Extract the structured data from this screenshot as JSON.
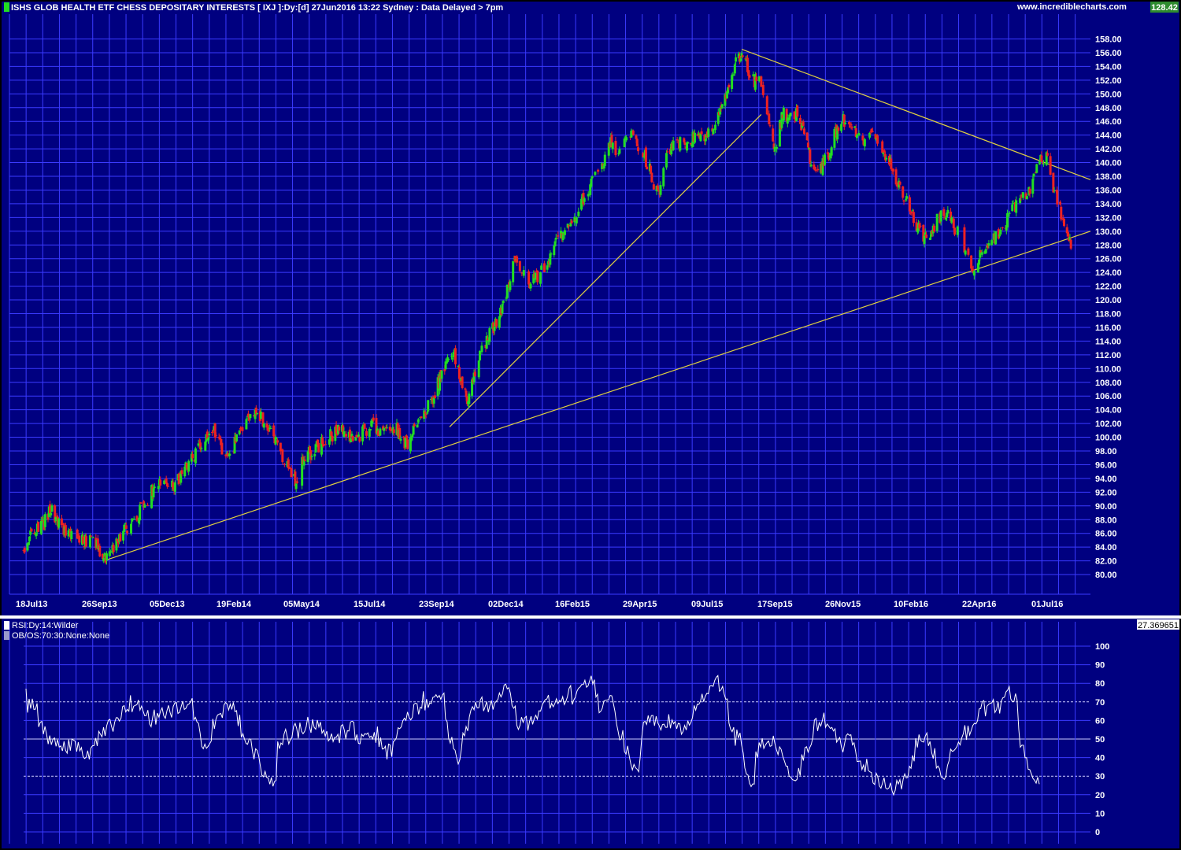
{
  "header": {
    "title": "ISHS GLOB HEALTH ETF CHESS DEPOSITARY INTERESTS [ IXJ ]:Dy:[d]  27Jun2016 13:22 Sydney : Data Delayed > 7pm",
    "site": "www.incrediblecharts.com",
    "last_price": "128.42"
  },
  "indicator": {
    "legend_1": "RSI:Dy:14:Wilder",
    "legend_2": "OB/OS:70:30:None:None",
    "last_value": "27.369651"
  },
  "colors": {
    "background": "#000080",
    "grid": "#3a3aff",
    "up_candle": "#22dd22",
    "down_candle": "#ee2222",
    "trendline": "#e0d040",
    "rsi_line": "#ffffff",
    "price_box": "#2e8b2e"
  },
  "chart_data": [
    {
      "type": "candlestick",
      "series": [
        {
          "name": "IXJ",
          "interpolation": "piecewise-linear close path"
        }
      ],
      "y_ticks": [
        "158.00",
        "156.00",
        "154.00",
        "152.00",
        "150.00",
        "148.00",
        "146.00",
        "144.00",
        "142.00",
        "140.00",
        "138.00",
        "136.00",
        "134.00",
        "132.00",
        "130.00",
        "128.00",
        "126.00",
        "124.00",
        "122.00",
        "120.00",
        "118.00",
        "116.00",
        "114.00",
        "112.00",
        "110.00",
        "108.00",
        "106.00",
        "104.00",
        "102.00",
        "100.00",
        "98.00",
        "96.00",
        "94.00",
        "92.00",
        "90.00",
        "88.00",
        "86.00",
        "84.00",
        "82.00",
        "80.00"
      ],
      "x_ticks": [
        "18Jul13",
        "26Sep13",
        "05Dec13",
        "19Feb14",
        "05May14",
        "15Jul14",
        "23Sep14",
        "02Dec14",
        "16Feb15",
        "29Apr15",
        "09Jul15",
        "17Sep15",
        "26Nov15",
        "10Feb16",
        "22Apr16",
        "01Jul16"
      ],
      "ylim": [
        78,
        159
      ],
      "x_range": [
        "2013-07-18",
        "2016-07-14"
      ],
      "key_points": [
        [
          "2013-07-18",
          83.5
        ],
        [
          "2013-07-25",
          85.5
        ],
        [
          "2013-08-08",
          87.5
        ],
        [
          "2013-08-15",
          89.5
        ],
        [
          "2013-08-25",
          86.5
        ],
        [
          "2013-09-05",
          85.5
        ],
        [
          "2013-09-20",
          85.0
        ],
        [
          "2013-09-26",
          85.2
        ],
        [
          "2013-10-08",
          82.5
        ],
        [
          "2013-10-20",
          84.5
        ],
        [
          "2013-11-03",
          87.5
        ],
        [
          "2013-11-15",
          89.5
        ],
        [
          "2013-11-28",
          92.5
        ],
        [
          "2013-12-08",
          93.5
        ],
        [
          "2013-12-20",
          93.0
        ],
        [
          "2014-01-03",
          96.0
        ],
        [
          "2014-01-20",
          99.5
        ],
        [
          "2014-02-01",
          101.0
        ],
        [
          "2014-02-08",
          96.5
        ],
        [
          "2014-02-19",
          99.0
        ],
        [
          "2014-02-28",
          102.0
        ],
        [
          "2014-03-12",
          104.0
        ],
        [
          "2014-03-25",
          101.5
        ],
        [
          "2014-04-05",
          98.5
        ],
        [
          "2014-04-16",
          95.0
        ],
        [
          "2014-04-22",
          93.5
        ],
        [
          "2014-04-30",
          97.0
        ],
        [
          "2014-05-10",
          98.0
        ],
        [
          "2014-05-25",
          100.0
        ],
        [
          "2014-06-08",
          101.0
        ],
        [
          "2014-06-22",
          100.0
        ],
        [
          "2014-07-08",
          101.5
        ],
        [
          "2014-07-22",
          101.0
        ],
        [
          "2014-08-05",
          101.0
        ],
        [
          "2014-08-14",
          99.0
        ],
        [
          "2014-08-25",
          102.5
        ],
        [
          "2014-09-08",
          105.0
        ],
        [
          "2014-09-23",
          111.0
        ],
        [
          "2014-10-02",
          112.0
        ],
        [
          "2014-10-12",
          107.0
        ],
        [
          "2014-10-16",
          105.0
        ],
        [
          "2014-10-26",
          111.0
        ],
        [
          "2014-11-06",
          115.0
        ],
        [
          "2014-11-14",
          117.0
        ],
        [
          "2014-11-22",
          120.0
        ],
        [
          "2014-12-02",
          125.5
        ],
        [
          "2014-12-12",
          123.5
        ],
        [
          "2014-12-20",
          122.5
        ],
        [
          "2015-01-01",
          124.5
        ],
        [
          "2015-01-10",
          127.0
        ],
        [
          "2015-01-20",
          130.0
        ],
        [
          "2015-02-01",
          132.0
        ],
        [
          "2015-02-16",
          136.0
        ],
        [
          "2015-03-01",
          139.0
        ],
        [
          "2015-03-12",
          143.0
        ],
        [
          "2015-03-18",
          141.0
        ],
        [
          "2015-03-26",
          144.0
        ],
        [
          "2015-04-03",
          143.5
        ],
        [
          "2015-04-12",
          142.0
        ],
        [
          "2015-04-22",
          138.0
        ],
        [
          "2015-04-29",
          135.0
        ],
        [
          "2015-05-08",
          141.0
        ],
        [
          "2015-05-18",
          143.0
        ],
        [
          "2015-05-26",
          142.0
        ],
        [
          "2015-06-04",
          144.0
        ],
        [
          "2015-06-14",
          143.0
        ],
        [
          "2015-06-26",
          146.0
        ],
        [
          "2015-07-09",
          150.0
        ],
        [
          "2015-07-16",
          154.0
        ],
        [
          "2015-07-23",
          156.0
        ],
        [
          "2015-07-28",
          154.0
        ],
        [
          "2015-08-04",
          152.0
        ],
        [
          "2015-08-12",
          151.5
        ],
        [
          "2015-08-21",
          144.5
        ],
        [
          "2015-08-26",
          142.0
        ],
        [
          "2015-09-03",
          147.0
        ],
        [
          "2015-09-17",
          147.0
        ],
        [
          "2015-09-26",
          144.0
        ],
        [
          "2015-10-02",
          140.0
        ],
        [
          "2015-10-12",
          139.0
        ],
        [
          "2015-10-22",
          142.0
        ],
        [
          "2015-11-01",
          146.5
        ],
        [
          "2015-11-08",
          146.0
        ],
        [
          "2015-11-18",
          144.0
        ],
        [
          "2015-11-26",
          143.0
        ],
        [
          "2015-12-04",
          145.0
        ],
        [
          "2015-12-14",
          142.0
        ],
        [
          "2015-12-22",
          140.0
        ],
        [
          "2016-01-05",
          135.0
        ],
        [
          "2016-01-18",
          131.0
        ],
        [
          "2016-01-28",
          128.5
        ],
        [
          "2016-02-10",
          132.0
        ],
        [
          "2016-02-18",
          133.0
        ],
        [
          "2016-02-28",
          130.0
        ],
        [
          "2016-03-10",
          127.0
        ],
        [
          "2016-03-16",
          124.5
        ],
        [
          "2016-03-24",
          126.5
        ],
        [
          "2016-04-04",
          128.5
        ],
        [
          "2016-04-14",
          130.0
        ],
        [
          "2016-04-22",
          132.5
        ],
        [
          "2016-05-04",
          135.0
        ],
        [
          "2016-05-12",
          136.0
        ],
        [
          "2016-05-22",
          140.5
        ],
        [
          "2016-05-30",
          141.0
        ],
        [
          "2016-06-06",
          136.0
        ],
        [
          "2016-06-16",
          132.0
        ],
        [
          "2016-06-24",
          128.5
        ]
      ]
    },
    {
      "type": "line",
      "series": [
        {
          "name": "RSI"
        }
      ],
      "y_ticks": [
        "100",
        "90",
        "80",
        "70",
        "60",
        "50",
        "40",
        "30",
        "20",
        "10",
        "0"
      ],
      "ylim": [
        0,
        100
      ],
      "reference_lines": [
        70,
        50,
        30
      ]
    }
  ],
  "trendlines": [
    {
      "from": [
        "2013-10-08",
        82.0
      ],
      "to": [
        "2016-07-14",
        130.0
      ]
    },
    {
      "from": [
        "2015-07-23",
        156.5
      ],
      "to": [
        "2016-07-14",
        137.5
      ]
    },
    {
      "from": [
        "2014-09-27",
        101.5
      ],
      "to": [
        "2015-08-12",
        147.0
      ]
    }
  ]
}
